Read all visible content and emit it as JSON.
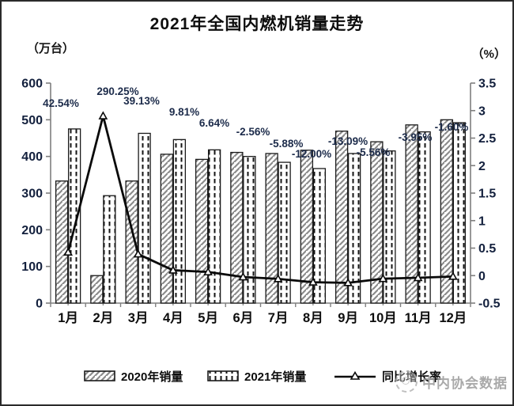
{
  "title": "2021年全国内燃机销量走势",
  "axes_units": {
    "left": "（万台）",
    "right": "（%）"
  },
  "legend": {
    "items": [
      {
        "label": "2020年销量",
        "swatch": "diagonal-hatch"
      },
      {
        "label": "2021年销量",
        "swatch": "dashed-vertical"
      },
      {
        "label": "同比增长率",
        "swatch": "line-triangle-marker"
      }
    ]
  },
  "watermark": {
    "text": "中内协会数据"
  },
  "colors": {
    "text_dark_navy": "#1c2b4a",
    "axis_line_gray": "#7f7f7f",
    "bar_border_black": "#1a1a1a",
    "hatch_gray": "#8c8c8c",
    "line_black": "#0a0a0a",
    "watermark_gray": "#9b9b9b"
  },
  "chart_data": {
    "type": "bar",
    "subtype": "grouped-bars-with-line",
    "title": "2021年全国内燃机销量走势",
    "categories": [
      "1月",
      "2月",
      "3月",
      "4月",
      "5月",
      "6月",
      "7月",
      "8月",
      "9月",
      "10月",
      "11月",
      "12月"
    ],
    "series": [
      {
        "name": "2020年销量",
        "type": "bar",
        "axis": "left",
        "pattern": "diagonal-hatch",
        "values": [
          333,
          75,
          333,
          406,
          392,
          411,
          408,
          417,
          469,
          440,
          486,
          500
        ]
      },
      {
        "name": "2021年销量",
        "type": "bar",
        "axis": "left",
        "pattern": "dashed-vertical",
        "values": [
          475,
          293,
          463,
          446,
          418,
          400,
          384,
          367,
          408,
          415,
          467,
          492
        ]
      },
      {
        "name": "同比增长率",
        "type": "line",
        "axis": "right",
        "marker": "triangle",
        "values": [
          0.4254,
          2.9025,
          0.3913,
          0.0981,
          0.0664,
          -0.0256,
          -0.0588,
          -0.12,
          -0.1309,
          -0.0556,
          -0.0395,
          -0.016
        ],
        "point_labels": [
          "42.54%",
          "290.25%",
          "39.13%",
          "9.81%",
          "6.64%",
          "-2.56%",
          "-5.88%",
          "-12.00%",
          "-13.09%",
          "-5.56%",
          "-3.95%",
          "-1.60%"
        ]
      }
    ],
    "left_axis": {
      "unit": "（万台）",
      "min": 0,
      "max": 600,
      "ticks": [
        0,
        100,
        200,
        300,
        400,
        500,
        600
      ],
      "tick_labels": [
        "0",
        "100",
        "200",
        "300",
        "400",
        "500",
        "600"
      ]
    },
    "right_axis": {
      "unit": "（%）",
      "min": -0.5,
      "max": 3.5,
      "ticks": [
        -0.5,
        0,
        0.5,
        1,
        1.5,
        2,
        2.5,
        3,
        3.5
      ],
      "tick_labels": [
        "-0.5",
        "0",
        "0.5",
        "1",
        "1.5",
        "2",
        "2.5",
        "3",
        "3.5"
      ]
    },
    "grid": false,
    "legend_position": "bottom"
  }
}
